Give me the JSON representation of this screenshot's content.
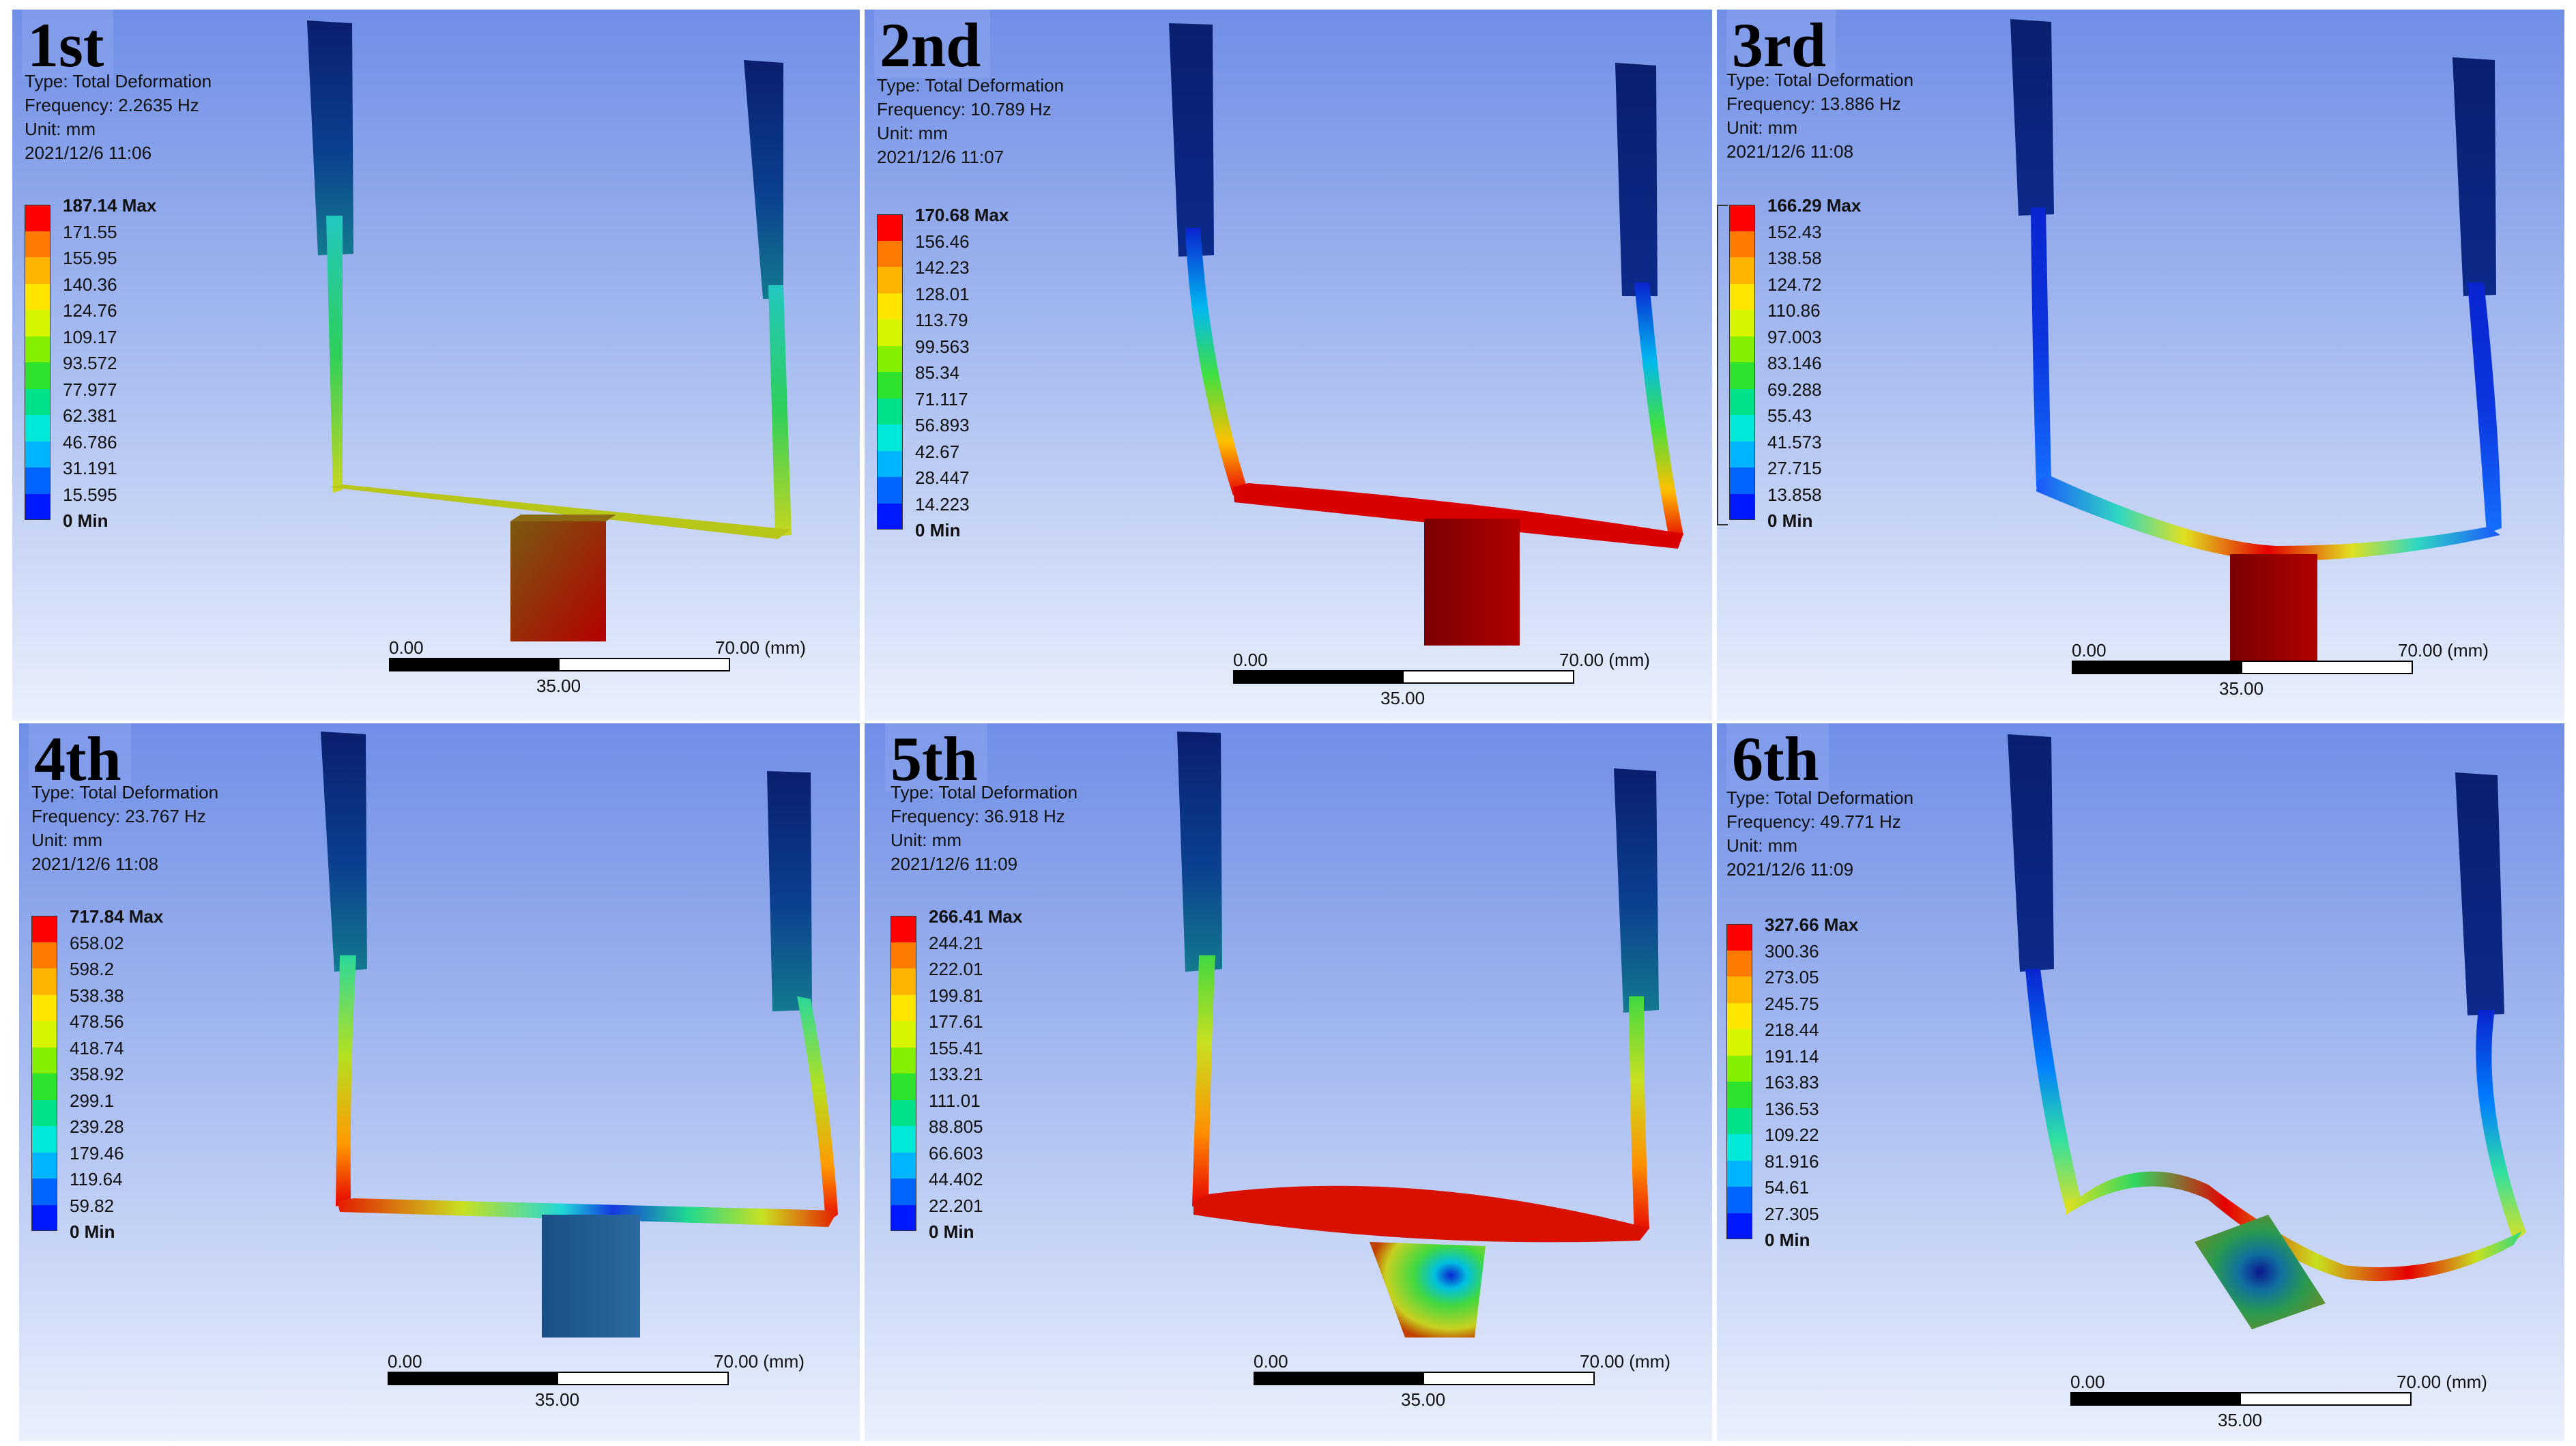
{
  "legend_colors": [
    "#ff0000",
    "#ff7a00",
    "#ffb400",
    "#ffe600",
    "#d8f500",
    "#84f000",
    "#2de22d",
    "#00e28a",
    "#00e8d8",
    "#00b4ff",
    "#0064ff",
    "#0018ff"
  ],
  "panels": [
    {
      "ordinal": "1st",
      "type": "Type: Total Deformation",
      "frequency": "Frequency: 2.2635 Hz",
      "unit": "Unit: mm",
      "timestamp": "2021/12/6 11:06",
      "legend": {
        "max": "187.14 Max",
        "min": "0 Min",
        "values": [
          "171.55",
          "155.95",
          "140.36",
          "124.76",
          "109.17",
          "93.572",
          "77.977",
          "62.381",
          "46.786",
          "31.191",
          "15.595"
        ]
      },
      "scale": {
        "left": "0.00",
        "right": "70.00 (mm)",
        "mid": "35.00"
      }
    },
    {
      "ordinal": "2nd",
      "type": "Type: Total Deformation",
      "frequency": "Frequency: 10.789 Hz",
      "unit": "Unit: mm",
      "timestamp": "2021/12/6 11:07",
      "legend": {
        "max": "170.68 Max",
        "min": "0 Min",
        "values": [
          "156.46",
          "142.23",
          "128.01",
          "113.79",
          "99.563",
          "85.34",
          "71.117",
          "56.893",
          "42.67",
          "28.447",
          "14.223"
        ]
      },
      "scale": {
        "left": "0.00",
        "right": "70.00 (mm)",
        "mid": "35.00"
      }
    },
    {
      "ordinal": "3rd",
      "type": "Type: Total Deformation",
      "frequency": "Frequency: 13.886 Hz",
      "unit": "Unit: mm",
      "timestamp": "2021/12/6 11:08",
      "legend": {
        "max": "166.29 Max",
        "min": "0 Min",
        "values": [
          "152.43",
          "138.58",
          "124.72",
          "110.86",
          "97.003",
          "83.146",
          "69.288",
          "55.43",
          "41.573",
          "27.715",
          "13.858"
        ]
      },
      "scale": {
        "left": "0.00",
        "right": "70.00 (mm)",
        "mid": "35.00"
      }
    },
    {
      "ordinal": "4th",
      "type": "Type: Total Deformation",
      "frequency": "Frequency: 23.767 Hz",
      "unit": "Unit: mm",
      "timestamp": "2021/12/6 11:08",
      "legend": {
        "max": "717.84 Max",
        "min": "0 Min",
        "values": [
          "658.02",
          "598.2",
          "538.38",
          "478.56",
          "418.74",
          "358.92",
          "299.1",
          "239.28",
          "179.46",
          "119.64",
          "59.82"
        ]
      },
      "scale": {
        "left": "0.00",
        "right": "70.00 (mm)",
        "mid": "35.00"
      }
    },
    {
      "ordinal": "5th",
      "type": "Type: Total Deformation",
      "frequency": "Frequency: 36.918 Hz",
      "unit": "Unit: mm",
      "timestamp": "2021/12/6 11:09",
      "legend": {
        "max": "266.41 Max",
        "min": "0 Min",
        "values": [
          "244.21",
          "222.01",
          "199.81",
          "177.61",
          "155.41",
          "133.21",
          "111.01",
          "88.805",
          "66.603",
          "44.402",
          "22.201"
        ]
      },
      "scale": {
        "left": "0.00",
        "right": "70.00 (mm)",
        "mid": "35.00"
      }
    },
    {
      "ordinal": "6th",
      "type": "Type: Total Deformation",
      "frequency": "Frequency: 49.771 Hz",
      "unit": "Unit: mm",
      "timestamp": "2021/12/6 11:09",
      "legend": {
        "max": "327.66 Max",
        "min": "0 Min",
        "values": [
          "300.36",
          "273.05",
          "245.75",
          "218.44",
          "191.14",
          "163.83",
          "136.53",
          "109.22",
          "81.916",
          "54.61",
          "27.305"
        ]
      },
      "scale": {
        "left": "0.00",
        "right": "70.00 (mm)",
        "mid": "35.00"
      }
    }
  ]
}
